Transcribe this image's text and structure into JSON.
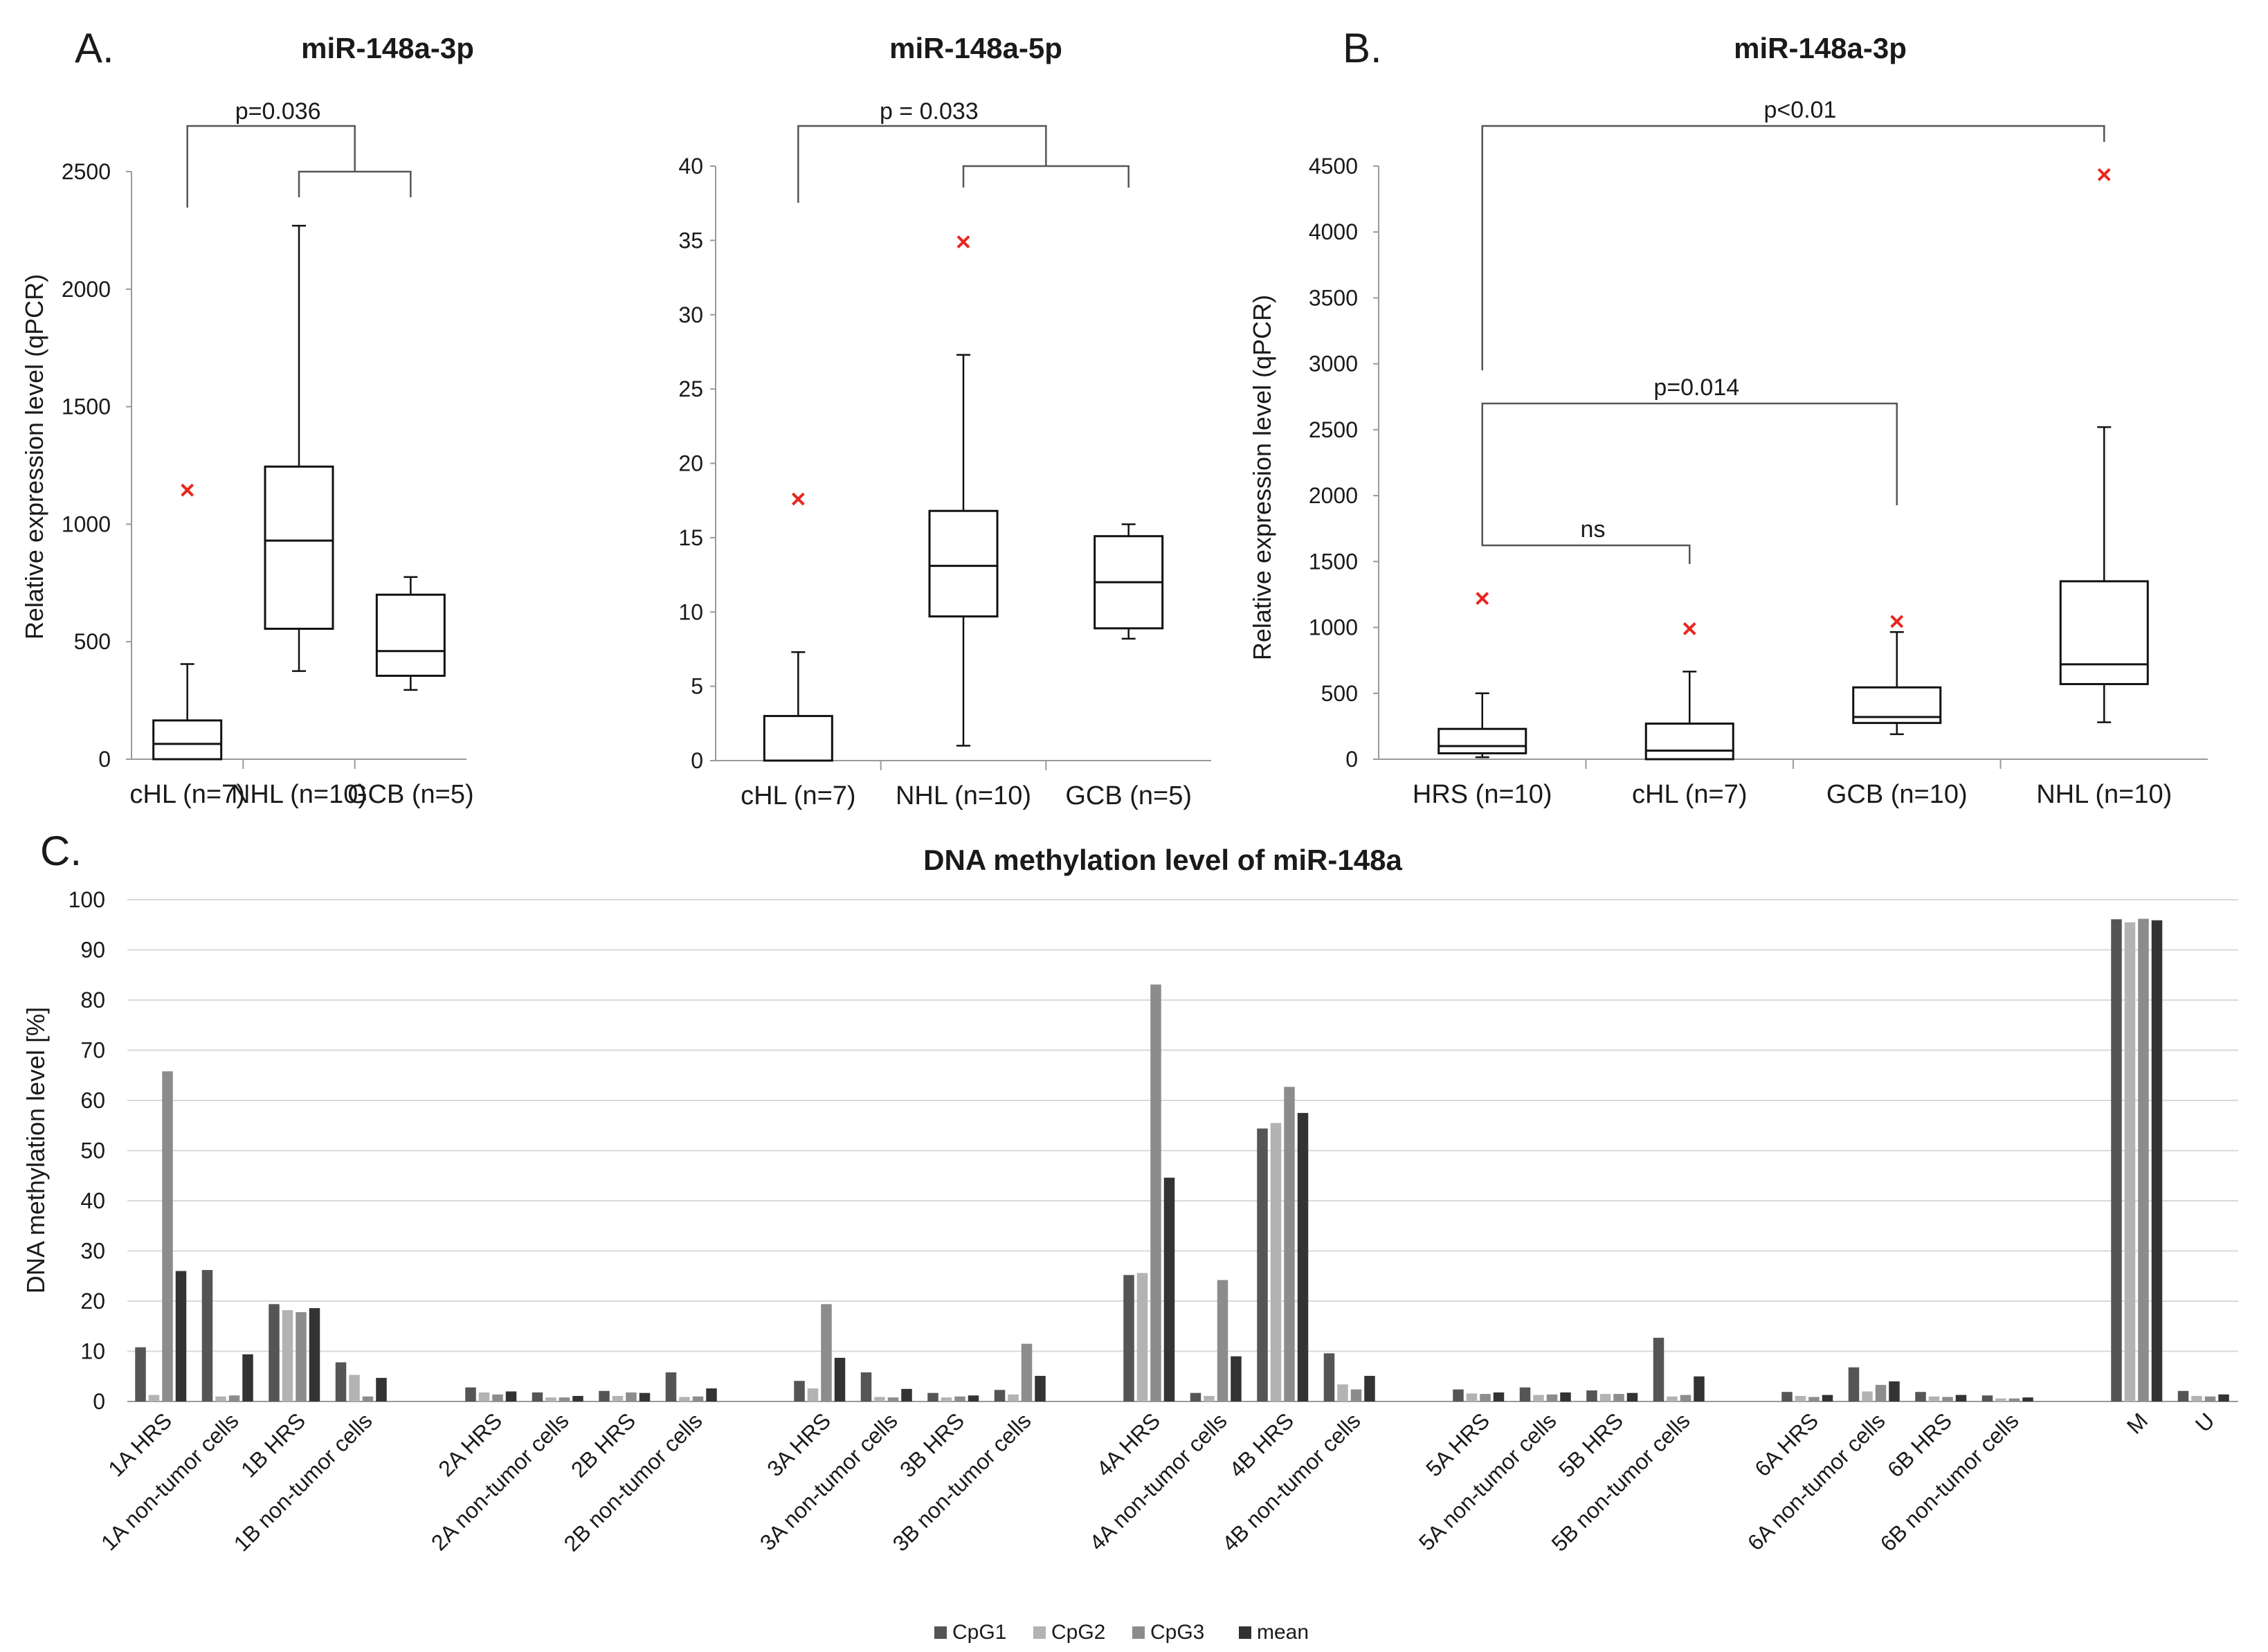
{
  "panels": {
    "A": "A.",
    "B": "B.",
    "C": "C."
  },
  "colors": {
    "CpG1": "#555555",
    "CpG2": "#b3b3b3",
    "CpG3": "#8c8c8c",
    "mean": "#333333",
    "outlier": "#e8261f",
    "grid": "#d9d9d9",
    "axis": "#9a9a9a"
  },
  "chart_data": [
    {
      "id": "a1",
      "type": "box",
      "title": "miR-148a-3p",
      "ylabel": "Relative expression level (qPCR)",
      "ylim": [
        0,
        2500
      ],
      "yticks": [
        0,
        500,
        1000,
        1500,
        2000,
        2500
      ],
      "categories": [
        "cHL (n=7)",
        "NHL (n=10)",
        "GCB (n=5)"
      ],
      "boxes": [
        {
          "min": 0,
          "q1": 0,
          "median": 65,
          "q3": 165,
          "max": 405,
          "outliers": [
            1145
          ]
        },
        {
          "min": 375,
          "q1": 555,
          "median": 930,
          "q3": 1245,
          "max": 2270,
          "outliers": []
        },
        {
          "min": 295,
          "q1": 355,
          "median": 460,
          "q3": 700,
          "max": 775,
          "outliers": []
        }
      ],
      "brackets": [
        {
          "label": "p=0.036",
          "left": 0,
          "right_group": [
            1,
            2
          ]
        }
      ]
    },
    {
      "id": "a2",
      "type": "box",
      "title": "miR-148a-5p",
      "ylabel": "",
      "ylim": [
        0,
        40
      ],
      "yticks": [
        0,
        5,
        10,
        15,
        20,
        25,
        30,
        35,
        40
      ],
      "categories": [
        "cHL (n=7)",
        "NHL (n=10)",
        "GCB (n=5)"
      ],
      "boxes": [
        {
          "min": 0,
          "q1": 0,
          "median": 0,
          "q3": 3,
          "max": 7.3,
          "outliers": [
            17.6
          ]
        },
        {
          "min": 1,
          "q1": 9.7,
          "median": 13.1,
          "q3": 16.8,
          "max": 27.3,
          "outliers": [
            34.9
          ]
        },
        {
          "min": 8.2,
          "q1": 8.9,
          "median": 12,
          "q3": 15.1,
          "max": 15.9,
          "outliers": []
        }
      ],
      "brackets": [
        {
          "label": "p = 0.033",
          "left": 0,
          "right_group": [
            1,
            2
          ]
        }
      ]
    },
    {
      "id": "b",
      "type": "box",
      "title": "miR-148a-3p",
      "ylabel": "Relative expression level (qPCR)",
      "ylim": [
        0,
        4500
      ],
      "yticks": [
        0,
        500,
        1000,
        1500,
        2000,
        2500,
        3000,
        3500,
        4000,
        4500
      ],
      "categories": [
        "HRS (n=10)",
        "cHL (n=7)",
        "GCB (n=10)",
        "NHL (n=10)"
      ],
      "boxes": [
        {
          "min": 15,
          "q1": 45,
          "median": 100,
          "q3": 230,
          "max": 500,
          "outliers": [
            1220
          ]
        },
        {
          "min": 0,
          "q1": 0,
          "median": 65,
          "q3": 270,
          "max": 665,
          "outliers": [
            990
          ]
        },
        {
          "min": 190,
          "q1": 275,
          "median": 320,
          "q3": 545,
          "max": 965,
          "outliers": [
            1045
          ]
        },
        {
          "min": 280,
          "q1": 570,
          "median": 720,
          "q3": 1350,
          "max": 2520,
          "outliers": [
            4435
          ]
        }
      ],
      "brackets": [
        {
          "label": "p<0.01",
          "pair": [
            0,
            3
          ]
        },
        {
          "label": "p=0.014",
          "pair": [
            0,
            2
          ]
        },
        {
          "label": "ns",
          "pair": [
            0,
            1
          ]
        }
      ]
    },
    {
      "id": "c",
      "type": "bar",
      "title": "DNA methylation level of miR-148a",
      "ylabel": "DNA methylation level [%]",
      "ylim": [
        0,
        100
      ],
      "yticks": [
        0,
        10,
        20,
        30,
        40,
        50,
        60,
        70,
        80,
        90,
        100
      ],
      "series_names": [
        "CpG1",
        "CpG2",
        "CpG3",
        "mean"
      ],
      "groups": [
        {
          "categories": [
            "1A HRS",
            "1A non-tumor cells",
            "1B HRS",
            "1B non-tumor cells"
          ],
          "values": [
            [
              10.8,
              1.3,
              65.8,
              26
            ],
            [
              26.2,
              1,
              1.2,
              9.4
            ],
            [
              19.4,
              18.2,
              17.8,
              18.6
            ],
            [
              7.8,
              5.3,
              1,
              4.7
            ]
          ]
        },
        {
          "categories": [
            "2A HRS",
            "2A non-tumor cells",
            "2B HRS",
            "2B non-tumor cells"
          ],
          "values": [
            [
              2.8,
              1.8,
              1.4,
              2
            ],
            [
              1.8,
              0.8,
              0.8,
              1.1
            ],
            [
              2.1,
              1.1,
              1.8,
              1.7
            ],
            [
              5.8,
              0.9,
              1,
              2.6
            ]
          ]
        },
        {
          "categories": [
            "3A HRS",
            "3A non-tumor cells",
            "3B HRS",
            "3B non-tumor cells"
          ],
          "values": [
            [
              4.1,
              2.6,
              19.4,
              8.7
            ],
            [
              5.8,
              0.9,
              0.8,
              2.5
            ],
            [
              1.7,
              0.8,
              1,
              1.2
            ],
            [
              2.3,
              1.4,
              11.5,
              5.1
            ]
          ]
        },
        {
          "categories": [
            "4A HRS",
            "4A non-tumor cells",
            "4B HRS",
            "4B non-tumor cells"
          ],
          "values": [
            [
              25.2,
              25.6,
              83.1,
              44.6
            ],
            [
              1.7,
              1.1,
              24.2,
              9
            ],
            [
              54.4,
              55.5,
              62.7,
              57.5
            ],
            [
              9.6,
              3.4,
              2.4,
              5.1
            ]
          ]
        },
        {
          "categories": [
            "5A HRS",
            "5A non-tumor cells",
            "5B HRS",
            "5B non-tumor cells"
          ],
          "values": [
            [
              2.4,
              1.6,
              1.5,
              1.8
            ],
            [
              2.8,
              1.3,
              1.4,
              1.8
            ],
            [
              2.2,
              1.5,
              1.5,
              1.7
            ],
            [
              12.7,
              1,
              1.3,
              5
            ]
          ]
        },
        {
          "categories": [
            "6A HRS",
            "6A non-tumor cells",
            "6B HRS",
            "6B non-tumor cells"
          ],
          "values": [
            [
              1.9,
              1.1,
              0.9,
              1.3
            ],
            [
              6.8,
              2,
              3.3,
              4
            ],
            [
              1.9,
              1,
              0.9,
              1.3
            ],
            [
              1.2,
              0.6,
              0.6,
              0.8
            ]
          ]
        },
        {
          "categories": [
            "M",
            "U"
          ],
          "values": [
            [
              96.1,
              95.5,
              96.2,
              95.9
            ],
            [
              2.1,
              1.1,
              1,
              1.4
            ]
          ]
        }
      ]
    }
  ]
}
